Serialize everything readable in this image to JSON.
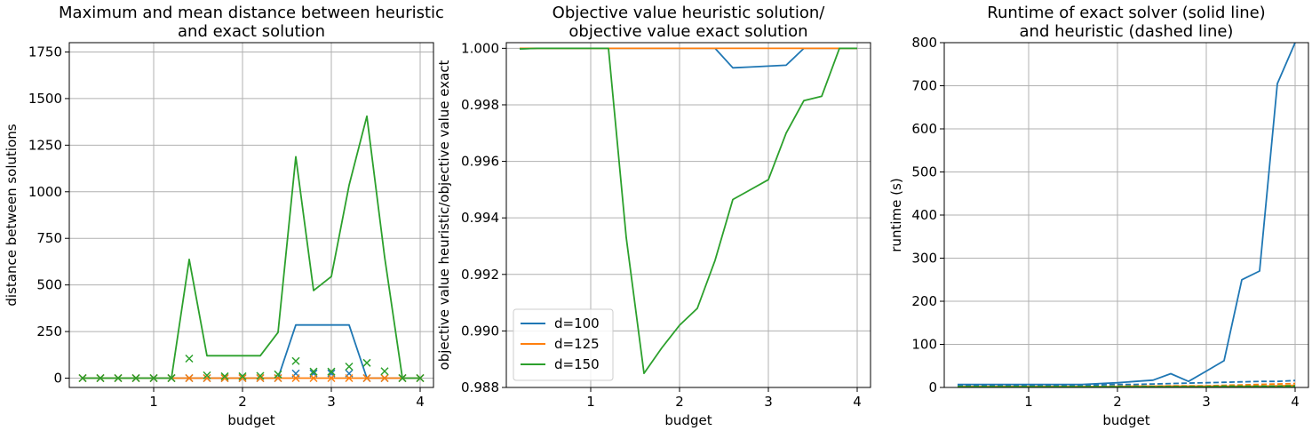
{
  "colors": {
    "d100": "#1f77b4",
    "d125": "#ff7f0e",
    "d150": "#2ca02c",
    "grid": "#b0b0b0"
  },
  "chart_data": [
    {
      "type": "line",
      "title": [
        "Maximum and mean distance between heuristic",
        "and exact solution"
      ],
      "xlabel": "budget",
      "ylabel": "distance between solutions",
      "xlim": [
        0.05,
        4.15
      ],
      "ylim": [
        -50,
        1800
      ],
      "xticks": [
        1,
        2,
        3,
        4
      ],
      "yticks": [
        0,
        250,
        500,
        750,
        1000,
        1250,
        1500,
        1750
      ],
      "grid": true,
      "x": [
        0.2,
        0.4,
        0.6,
        0.8,
        1.0,
        1.2,
        1.4,
        1.6,
        1.8,
        2.0,
        2.2,
        2.4,
        2.6,
        2.8,
        3.0,
        3.2,
        3.4,
        3.6,
        3.8,
        4.0
      ],
      "series": [
        {
          "color_key": "d100",
          "style": "line",
          "values": [
            0,
            0,
            0,
            0,
            0,
            0,
            0,
            0,
            0,
            0,
            0,
            0,
            285,
            285,
            285,
            285,
            0,
            0,
            0,
            0
          ]
        },
        {
          "color_key": "d125",
          "style": "line",
          "values": [
            0,
            0,
            0,
            0,
            0,
            0,
            0,
            0,
            0,
            0,
            0,
            0,
            0,
            0,
            0,
            0,
            0,
            0,
            0,
            0
          ]
        },
        {
          "color_key": "d150",
          "style": "line",
          "values": [
            0,
            0,
            0,
            0,
            0,
            0,
            637,
            120,
            120,
            120,
            120,
            245,
            1188,
            470,
            545,
            1035,
            1405,
            650,
            0,
            0
          ]
        },
        {
          "color_key": "d100",
          "style": "marker",
          "values": [
            0,
            0,
            0,
            0,
            0,
            0,
            0,
            0,
            0,
            0,
            0,
            0,
            25,
            25,
            25,
            25,
            0,
            0,
            0,
            0
          ]
        },
        {
          "color_key": "d125",
          "style": "marker",
          "values": [
            0,
            0,
            0,
            0,
            0,
            0,
            0,
            0,
            0,
            0,
            0,
            0,
            0,
            0,
            0,
            0,
            0,
            0,
            0,
            0
          ]
        },
        {
          "color_key": "d150",
          "style": "marker",
          "values": [
            0,
            0,
            0,
            0,
            0,
            0,
            105,
            15,
            10,
            10,
            12,
            20,
            92,
            35,
            35,
            62,
            82,
            37,
            0,
            0
          ]
        }
      ]
    },
    {
      "type": "line",
      "title": [
        "Objective value heuristic solution/",
        "objective value exact solution"
      ],
      "xlabel": "budget",
      "ylabel": "objective value heuristic/objective value exact",
      "xlim": [
        0.05,
        4.15
      ],
      "ylim": [
        0.988,
        1.0002
      ],
      "xticks": [
        1,
        2,
        3,
        4
      ],
      "yticks": [
        0.988,
        0.99,
        0.992,
        0.994,
        0.996,
        0.998,
        1.0
      ],
      "yticklabels": [
        "0.988",
        "0.990",
        "0.992",
        "0.994",
        "0.996",
        "0.998",
        "1.000"
      ],
      "grid": true,
      "legend": {
        "position": "lower-left",
        "entries": [
          {
            "name": "d=100",
            "color_key": "d100"
          },
          {
            "name": "d=125",
            "color_key": "d125"
          },
          {
            "name": "d=150",
            "color_key": "d150"
          }
        ]
      },
      "x": [
        0.2,
        0.4,
        0.6,
        0.8,
        1.0,
        1.2,
        1.4,
        1.6,
        1.8,
        2.0,
        2.2,
        2.4,
        2.6,
        2.8,
        3.0,
        3.2,
        3.4,
        3.6,
        3.8,
        4.0
      ],
      "series": [
        {
          "name": "d=100",
          "color_key": "d100",
          "style": "line",
          "values": [
            0.99998,
            1.0,
            1.0,
            1.0,
            1.0,
            1.0,
            1.0,
            1.0,
            1.0,
            1.0,
            1.0,
            1.0,
            0.99931,
            0.99934,
            0.99937,
            0.9994,
            1.0,
            1.0,
            1.0,
            1.0
          ]
        },
        {
          "name": "d=125",
          "color_key": "d125",
          "style": "line",
          "values": [
            1.0,
            1.0,
            1.0,
            1.0,
            1.0,
            1.0,
            1.0,
            1.0,
            1.0,
            1.0,
            1.0,
            1.0,
            1.0,
            1.0,
            1.0,
            1.0,
            1.0,
            1.0,
            1.0,
            1.0
          ]
        },
        {
          "name": "d=150",
          "color_key": "d150",
          "style": "line",
          "values": [
            0.99998,
            1.0,
            1.0,
            1.0,
            1.0,
            1.0,
            0.9933,
            0.9885,
            0.9894,
            0.9902,
            0.9908,
            0.9925,
            0.99465,
            0.995,
            0.99535,
            0.997,
            0.99815,
            0.9983,
            1.0,
            1.0
          ]
        }
      ]
    },
    {
      "type": "line",
      "title": [
        "Runtime of exact solver (solid line)",
        "and heuristic (dashed line)"
      ],
      "xlabel": "budget",
      "ylabel": "runtime (s)",
      "xlim": [
        0.05,
        4.15
      ],
      "ylim": [
        0,
        800
      ],
      "xticks": [
        1,
        2,
        3,
        4
      ],
      "yticks": [
        0,
        100,
        200,
        300,
        400,
        500,
        600,
        700,
        800
      ],
      "grid": true,
      "x": [
        0.2,
        0.4,
        0.6,
        0.8,
        1.0,
        1.2,
        1.4,
        1.6,
        1.8,
        2.0,
        2.2,
        2.4,
        2.6,
        2.8,
        3.0,
        3.2,
        3.4,
        3.6,
        3.8,
        4.0
      ],
      "series": [
        {
          "color_key": "d100",
          "style": "solid",
          "values": [
            7,
            7,
            7,
            7,
            7,
            7,
            7,
            7,
            9,
            11,
            14,
            17,
            32,
            14,
            38,
            62,
            250,
            270,
            705,
            800
          ]
        },
        {
          "color_key": "d125",
          "style": "solid",
          "values": [
            2,
            2,
            2,
            2,
            2,
            2,
            2,
            2,
            2,
            2,
            3,
            3,
            3,
            3,
            3,
            3,
            3,
            3,
            4,
            5
          ]
        },
        {
          "color_key": "d150",
          "style": "solid",
          "values": [
            1,
            1,
            1,
            1,
            1,
            1,
            1,
            1,
            1,
            1,
            1,
            1,
            1,
            1,
            1,
            1,
            1,
            1,
            1,
            1
          ]
        },
        {
          "color_key": "d100",
          "style": "dashed",
          "values": [
            4,
            4,
            4,
            4,
            4,
            4,
            4,
            5,
            6,
            7,
            7,
            8,
            9,
            10,
            11,
            12,
            13,
            14,
            14,
            16
          ]
        },
        {
          "color_key": "d125",
          "style": "dashed",
          "values": [
            2,
            2,
            2,
            2,
            2,
            2,
            2,
            2,
            2,
            3,
            3,
            3,
            4,
            4,
            4,
            5,
            6,
            7,
            8,
            9
          ]
        },
        {
          "color_key": "d150",
          "style": "dashed",
          "values": [
            2,
            2,
            2,
            2,
            2,
            2,
            2,
            2,
            2,
            2,
            2,
            2,
            2,
            2,
            2,
            3,
            3,
            3,
            3,
            4
          ]
        }
      ]
    }
  ]
}
